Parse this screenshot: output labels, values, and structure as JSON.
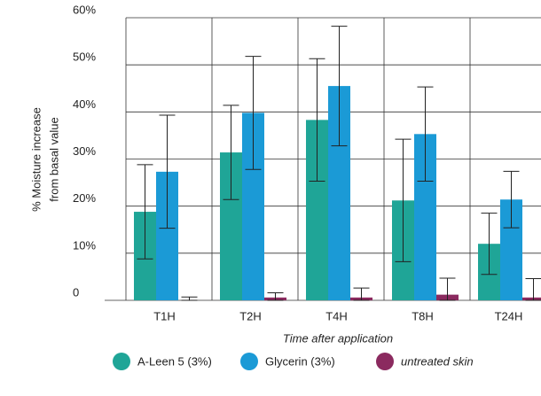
{
  "chart_data": {
    "type": "bar",
    "ylabel": [
      "% Moisture increase",
      "from basal value"
    ],
    "xlabel": "Time after application",
    "categories": [
      "T1H",
      "T2H",
      "T4H",
      "T8H",
      "T24H"
    ],
    "series": [
      {
        "name": "A-Leen 5 (3%)",
        "color": "#1fa597",
        "values": [
          18.8,
          31.4,
          38.3,
          21.2,
          12
        ],
        "errors": [
          10,
          10,
          13,
          13,
          6.5
        ]
      },
      {
        "name": "Glycerin (3%)",
        "color": "#1b9ad6",
        "values": [
          27.3,
          39.8,
          45.5,
          35.3,
          21.4
        ],
        "errors": [
          12,
          12,
          12.7,
          10,
          6
        ]
      },
      {
        "name": "untreated skin",
        "color": "#8b2a5f",
        "values": [
          0,
          0.6,
          0.6,
          1.2,
          0.6
        ],
        "errors": [
          0.7,
          1,
          2,
          3.5,
          4
        ]
      }
    ],
    "ylim": [
      0,
      60
    ],
    "yticks": [
      0,
      {
        "value": 10,
        "label": "10%"
      },
      {
        "value": 20,
        "label": "20%"
      },
      {
        "value": 30,
        "label": "30%"
      },
      {
        "value": 40,
        "label": "40%"
      },
      {
        "value": 50,
        "label": "50%"
      },
      {
        "value": 60,
        "label": "60%"
      }
    ],
    "grid": true,
    "legend": "bottom"
  }
}
